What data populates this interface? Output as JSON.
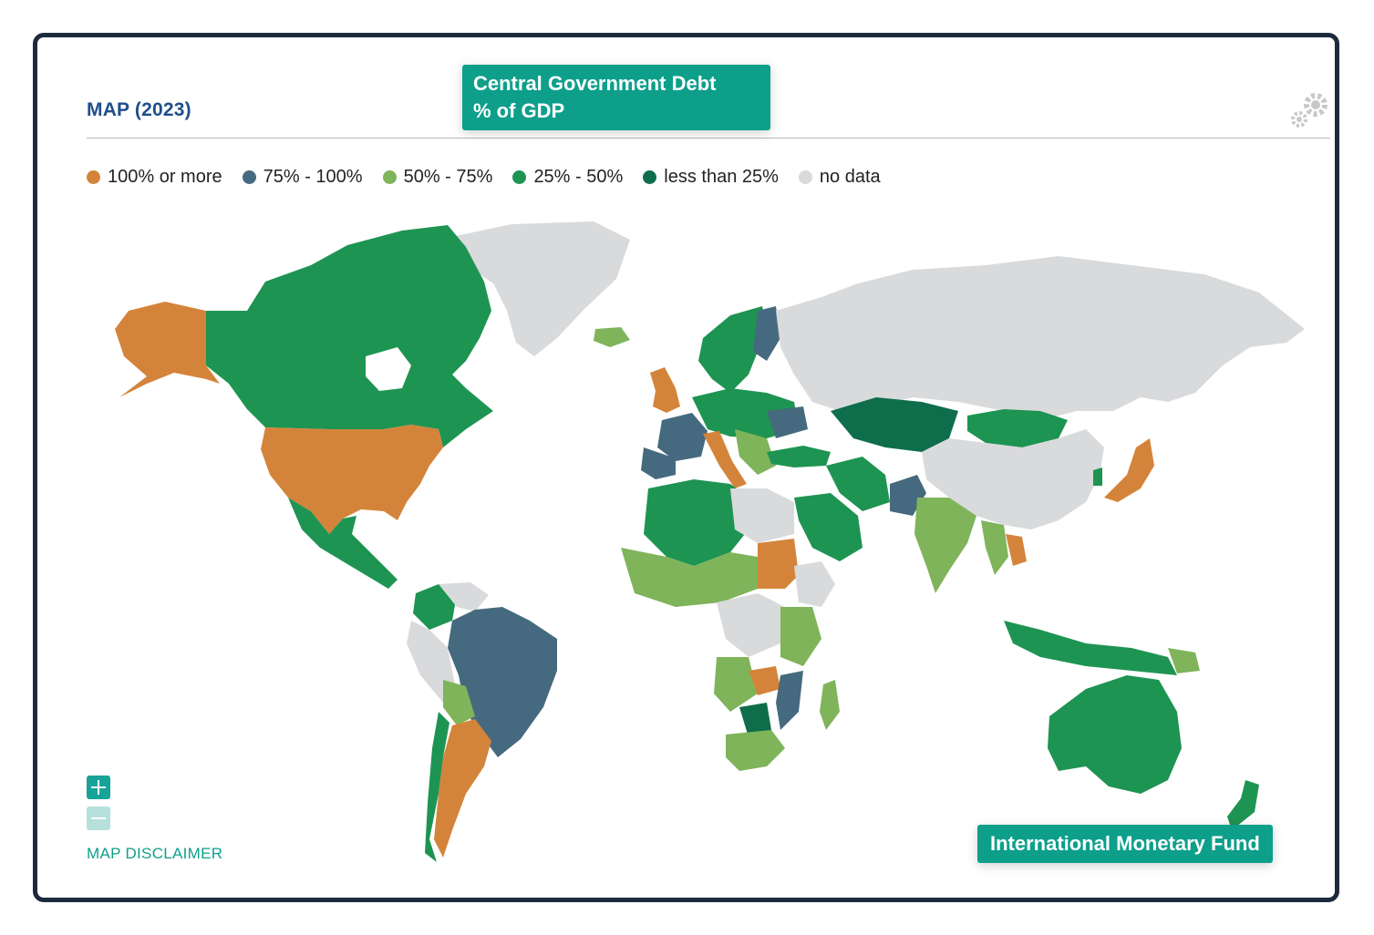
{
  "header": {
    "title": "MAP (2023)",
    "indicator_line1": "Central Government Debt",
    "indicator_line2": "% of GDP",
    "settings_icon": "gear-icon"
  },
  "legend": {
    "items": [
      {
        "label": "100% or more",
        "color": "#d4843a"
      },
      {
        "label": "75% - 100%",
        "color": "#456a7f"
      },
      {
        "label": "50% - 75%",
        "color": "#7fb45a"
      },
      {
        "label": "25% - 50%",
        "color": "#1e9452"
      },
      {
        "label": "less than 25%",
        "color": "#0e6e4b"
      },
      {
        "label": "no data",
        "color": "#d9dadc"
      }
    ]
  },
  "map": {
    "ocean_color": "#ffffff",
    "regions": [
      {
        "name": "Greenland",
        "category": "no data"
      },
      {
        "name": "Canada",
        "category": "25% - 50%"
      },
      {
        "name": "Alaska",
        "category": "100% or more"
      },
      {
        "name": "United States",
        "category": "100% or more"
      },
      {
        "name": "Mexico",
        "category": "25% - 50%"
      },
      {
        "name": "Brazil",
        "category": "75% - 100%"
      },
      {
        "name": "Argentina",
        "category": "100% or more"
      },
      {
        "name": "Russia",
        "category": "no data"
      },
      {
        "name": "Kazakhstan",
        "category": "less than 25%"
      },
      {
        "name": "Mongolia",
        "category": "25% - 50%"
      },
      {
        "name": "China",
        "category": "no data"
      },
      {
        "name": "India",
        "category": "50% - 75%"
      },
      {
        "name": "Japan",
        "category": "100% or more"
      },
      {
        "name": "Sudan",
        "category": "100% or more"
      },
      {
        "name": "Zambia",
        "category": "100% or more"
      },
      {
        "name": "Botswana",
        "category": "less than 25%"
      },
      {
        "name": "South Africa",
        "category": "50% - 75%"
      },
      {
        "name": "Australia",
        "category": "25% - 50%"
      },
      {
        "name": "Iceland",
        "category": "50% - 75%"
      },
      {
        "name": "United Kingdom",
        "category": "100% or more"
      },
      {
        "name": "France",
        "category": "75% - 100%"
      },
      {
        "name": "Italy",
        "category": "100% or more"
      },
      {
        "name": "Madagascar",
        "category": "50% - 75%"
      }
    ]
  },
  "controls": {
    "zoom_in": "zoom-in-button",
    "zoom_out": "zoom-out-button",
    "disclaimer": "MAP DISCLAIMER"
  },
  "source": "International Monetary Fund"
}
